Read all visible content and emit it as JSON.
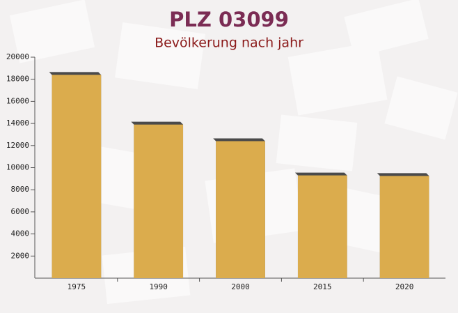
{
  "chart_data": {
    "type": "bar",
    "title": "PLZ 03099",
    "subtitle": "Bevölkerung nach jahr",
    "categories": [
      "1975",
      "1990",
      "2000",
      "2015",
      "2020"
    ],
    "values": [
      18400,
      13900,
      12400,
      9300,
      9250
    ],
    "color": "#ffc44d",
    "ylim": [
      0,
      20000
    ],
    "yticks": [
      2000,
      4000,
      6000,
      8000,
      10000,
      12000,
      14000,
      16000,
      18000,
      20000
    ]
  }
}
